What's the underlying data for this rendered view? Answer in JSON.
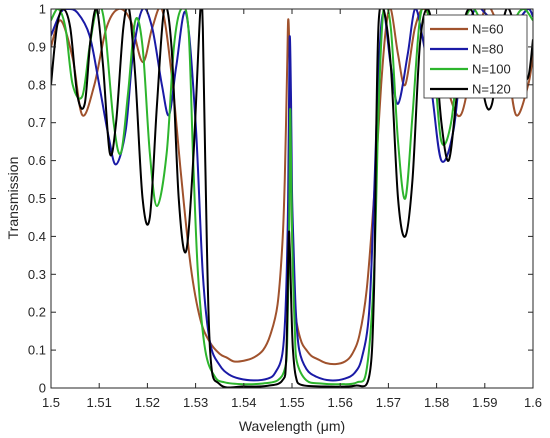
{
  "chart_data": {
    "type": "line",
    "xlabel": "Wavelength (μm)",
    "ylabel": "Transmission",
    "xlim": [
      1.5,
      1.6
    ],
    "ylim": [
      0,
      1
    ],
    "xticks": [
      "1.5",
      "1.51",
      "1.52",
      "1.53",
      "1.54",
      "1.55",
      "1.56",
      "1.57",
      "1.58",
      "1.59",
      "1.6"
    ],
    "yticks": [
      "0",
      "0.1",
      "0.2",
      "0.3",
      "0.4",
      "0.5",
      "0.6",
      "0.7",
      "0.8",
      "0.9",
      "1"
    ],
    "grid": false,
    "legend_position": "top-right",
    "series": [
      {
        "name": "N=60",
        "color": "#a0522d",
        "x": [
          1.5,
          1.502,
          1.5045,
          1.5065,
          1.509,
          1.5115,
          1.514,
          1.5165,
          1.519,
          1.521,
          1.523,
          1.525,
          1.527,
          1.529,
          1.531,
          1.533,
          1.535,
          1.5365,
          1.538,
          1.54,
          1.542,
          1.544,
          1.5455,
          1.547,
          1.548,
          1.5485,
          1.549,
          1.5492,
          1.5494,
          1.5496,
          1.5498,
          1.55,
          1.5502,
          1.5506,
          1.551,
          1.552,
          1.553,
          1.554,
          1.5555,
          1.557,
          1.559,
          1.561,
          1.5625,
          1.564,
          1.5655,
          1.567,
          1.5685,
          1.5695,
          1.5705,
          1.572,
          1.5735,
          1.5755,
          1.5775,
          1.58,
          1.5825,
          1.585,
          1.5875,
          1.59,
          1.592,
          1.5945,
          1.5965,
          1.599,
          1.6
        ],
        "y": [
          0.9,
          0.97,
          0.87,
          0.72,
          0.8,
          0.95,
          1.0,
          0.97,
          0.86,
          0.95,
          1.0,
          0.83,
          0.56,
          0.32,
          0.18,
          0.12,
          0.09,
          0.08,
          0.07,
          0.072,
          0.08,
          0.1,
          0.14,
          0.22,
          0.38,
          0.55,
          0.85,
          0.97,
          0.92,
          0.75,
          0.6,
          0.42,
          0.33,
          0.22,
          0.17,
          0.12,
          0.1,
          0.085,
          0.075,
          0.066,
          0.063,
          0.07,
          0.09,
          0.14,
          0.26,
          0.5,
          0.8,
          0.95,
          1.0,
          0.88,
          0.8,
          0.95,
          1.0,
          0.92,
          0.78,
          0.72,
          0.86,
          1.0,
          0.98,
          0.87,
          0.72,
          0.8,
          0.88
        ]
      },
      {
        "name": "N=80",
        "color": "#1a1aa6",
        "x": [
          1.5,
          1.502,
          1.5035,
          1.5055,
          1.508,
          1.51,
          1.512,
          1.5135,
          1.5155,
          1.517,
          1.519,
          1.521,
          1.523,
          1.5245,
          1.526,
          1.528,
          1.53,
          1.5315,
          1.533,
          1.535,
          1.537,
          1.539,
          1.542,
          1.545,
          1.5465,
          1.548,
          1.5487,
          1.5492,
          1.5495,
          1.5498,
          1.55,
          1.5503,
          1.5508,
          1.5515,
          1.553,
          1.555,
          1.558,
          1.561,
          1.563,
          1.5645,
          1.566,
          1.567,
          1.568,
          1.569,
          1.5705,
          1.572,
          1.574,
          1.5755,
          1.577,
          1.579,
          1.581,
          1.5835,
          1.5855,
          1.588,
          1.59,
          1.5925,
          1.5945,
          1.597,
          1.599,
          1.6
        ],
        "y": [
          0.93,
          0.99,
          1.0,
          0.99,
          0.93,
          0.8,
          0.66,
          0.59,
          0.68,
          0.88,
          1.0,
          0.95,
          0.8,
          0.72,
          0.85,
          0.99,
          0.7,
          0.3,
          0.12,
          0.06,
          0.035,
          0.025,
          0.02,
          0.025,
          0.04,
          0.09,
          0.22,
          0.5,
          0.92,
          0.76,
          0.52,
          0.38,
          0.2,
          0.1,
          0.05,
          0.03,
          0.02,
          0.025,
          0.04,
          0.08,
          0.2,
          0.5,
          0.85,
          0.99,
          0.85,
          0.75,
          0.88,
          1.0,
          0.93,
          0.78,
          0.6,
          0.68,
          0.9,
          1.0,
          0.99,
          0.95,
          0.92,
          0.97,
          1.0,
          0.98
        ]
      },
      {
        "name": "N=100",
        "color": "#2db52d",
        "x": [
          1.5,
          1.5015,
          1.503,
          1.5045,
          1.5065,
          1.508,
          1.5095,
          1.511,
          1.513,
          1.5145,
          1.516,
          1.5175,
          1.519,
          1.5205,
          1.522,
          1.524,
          1.5255,
          1.527,
          1.5285,
          1.5295,
          1.5305,
          1.532,
          1.534,
          1.536,
          1.54,
          1.544,
          1.547,
          1.5485,
          1.549,
          1.5494,
          1.5496,
          1.5498,
          1.55,
          1.5502,
          1.5506,
          1.551,
          1.553,
          1.556,
          1.56,
          1.5635,
          1.5655,
          1.567,
          1.568,
          1.569,
          1.5705,
          1.572,
          1.5735,
          1.575,
          1.5765,
          1.578,
          1.5795,
          1.581,
          1.583,
          1.585,
          1.587,
          1.589,
          1.591,
          1.5935,
          1.596,
          1.598,
          1.6
        ],
        "y": [
          0.97,
          1.0,
          0.95,
          0.8,
          0.77,
          0.9,
          1.0,
          0.97,
          0.7,
          0.62,
          0.78,
          0.97,
          0.9,
          0.62,
          0.48,
          0.62,
          0.9,
          1.0,
          0.95,
          0.6,
          0.3,
          0.1,
          0.03,
          0.015,
          0.01,
          0.012,
          0.02,
          0.05,
          0.12,
          0.4,
          0.73,
          0.6,
          0.42,
          0.3,
          0.15,
          0.07,
          0.02,
          0.012,
          0.01,
          0.015,
          0.05,
          0.3,
          0.75,
          1.0,
          0.95,
          0.65,
          0.5,
          0.72,
          0.97,
          1.0,
          0.85,
          0.65,
          0.7,
          0.92,
          1.0,
          0.97,
          0.86,
          0.82,
          0.96,
          1.0,
          0.97
        ]
      },
      {
        "name": "N=120",
        "color": "#000000",
        "x": [
          1.5,
          1.5012,
          1.5025,
          1.504,
          1.5055,
          1.507,
          1.5082,
          1.5095,
          1.5108,
          1.5122,
          1.5135,
          1.515,
          1.5162,
          1.5175,
          1.519,
          1.5205,
          1.522,
          1.5235,
          1.525,
          1.5265,
          1.528,
          1.5295,
          1.531,
          1.5315,
          1.532,
          1.533,
          1.535,
          1.54,
          1.545,
          1.548,
          1.5488,
          1.5493,
          1.5495,
          1.5497,
          1.5499,
          1.5502,
          1.5508,
          1.552,
          1.557,
          1.563,
          1.566,
          1.567,
          1.5675,
          1.568,
          1.569,
          1.5705,
          1.572,
          1.5735,
          1.575,
          1.5765,
          1.578,
          1.5795,
          1.581,
          1.5825,
          1.584,
          1.5855,
          1.587,
          1.5885,
          1.59,
          1.5915,
          1.593,
          1.5945,
          1.596,
          1.5975,
          1.599,
          1.6
        ],
        "y": [
          0.8,
          0.95,
          1.0,
          0.95,
          0.77,
          0.75,
          0.92,
          1.0,
          0.85,
          0.62,
          0.7,
          0.95,
          1.0,
          0.82,
          0.5,
          0.45,
          0.75,
          1.0,
          0.9,
          0.5,
          0.36,
          0.6,
          1.0,
          0.95,
          0.6,
          0.1,
          0.01,
          0.004,
          0.006,
          0.02,
          0.08,
          0.39,
          0.38,
          0.3,
          0.2,
          0.1,
          0.03,
          0.008,
          0.004,
          0.006,
          0.03,
          0.25,
          0.7,
          0.97,
          1.0,
          0.85,
          0.5,
          0.4,
          0.55,
          0.9,
          1.0,
          0.92,
          0.7,
          0.6,
          0.75,
          0.95,
          1.0,
          0.93,
          0.76,
          0.75,
          0.9,
          1.0,
          0.96,
          0.84,
          0.82,
          0.92
        ]
      }
    ]
  }
}
